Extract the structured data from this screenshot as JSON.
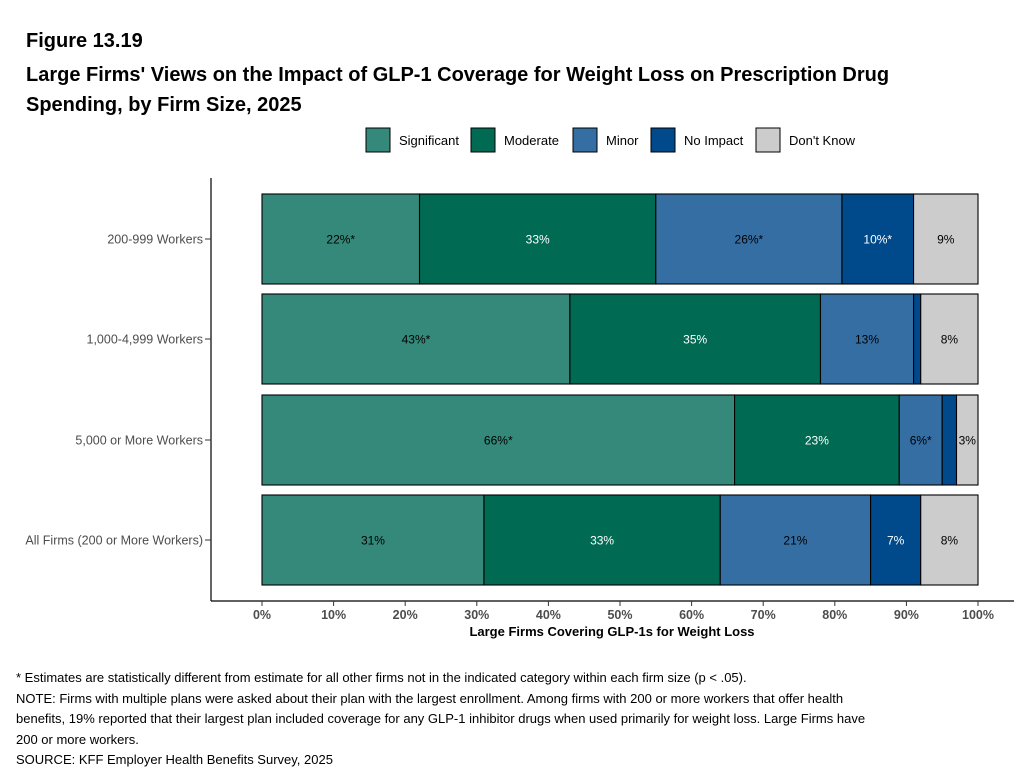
{
  "figure": {
    "label": "Figure 13.19",
    "title": "Large Firms' Views on the Impact of GLP-1 Coverage for Weight Loss on Prescription Drug Spending, by Firm Size, 2025"
  },
  "chart_data": {
    "type": "bar",
    "orientation": "horizontal",
    "stacked": true,
    "xlabel": "Large Firms Covering GLP-1s for Weight Loss",
    "ylabel": "",
    "xlim": [
      0,
      100
    ],
    "x_ticks": [
      "0%",
      "10%",
      "20%",
      "30%",
      "40%",
      "50%",
      "60%",
      "70%",
      "80%",
      "90%",
      "100%"
    ],
    "grid": false,
    "legend_position": "top",
    "categories": [
      "200-999 Workers",
      "1,000-4,999 Workers",
      "5,000 or More Workers",
      "All Firms (200 or More Workers)"
    ],
    "series": [
      {
        "name": "Significant",
        "color": "#35897A",
        "text_color": "#000000",
        "values": [
          22,
          43,
          66,
          31
        ],
        "labels": [
          "22%*",
          "43%*",
          "66%*",
          "31%"
        ]
      },
      {
        "name": "Moderate",
        "color": "#006A53",
        "text_color": "#ffffff",
        "values": [
          33,
          35,
          23,
          33
        ],
        "labels": [
          "33%",
          "35%",
          "23%",
          "33%"
        ]
      },
      {
        "name": "Minor",
        "color": "#356EA3",
        "text_color": "#000000",
        "values": [
          26,
          13,
          6,
          21
        ],
        "labels": [
          "26%*",
          "13%",
          "6%*",
          "21%"
        ]
      },
      {
        "name": "No Impact",
        "color": "#00498A",
        "text_color": "#ffffff",
        "values": [
          10,
          1,
          2,
          7
        ],
        "labels": [
          "10%*",
          "",
          "",
          "7%"
        ]
      },
      {
        "name": "Don't Know",
        "color": "#CCCCCC",
        "text_color": "#000000",
        "values": [
          9,
          8,
          3,
          8
        ],
        "labels": [
          "9%",
          "8%",
          "3%",
          "8%"
        ]
      }
    ]
  },
  "notes": {
    "asterisk": "* Estimates are statistically different from estimate for all other firms not in the indicated category within each firm size (p < .05).",
    "note_line1": "NOTE: Firms with multiple plans were asked about their plan with the largest enrollment.  Among firms with 200 or more workers that offer health",
    "note_line2": "benefits, 19% reported that their largest plan included coverage for any GLP-1 inhibitor drugs when used primarily for weight loss. Large Firms have",
    "note_line3": "200 or more workers.",
    "source": "SOURCE: KFF Employer Health Benefits Survey, 2025"
  }
}
